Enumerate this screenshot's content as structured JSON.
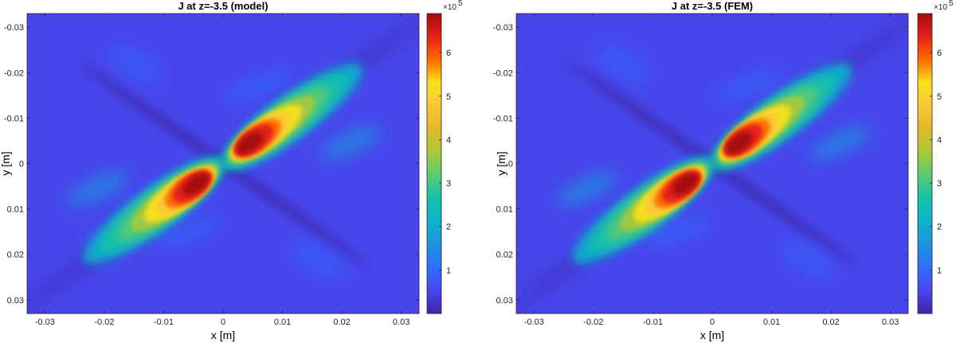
{
  "colors": {
    "colormap": [
      "#3e26a8",
      "#4746eb",
      "#2f6ffe",
      "#1e93e0",
      "#0fb1cc",
      "#14c2a6",
      "#5cca74",
      "#a8c93a",
      "#e2b82c",
      "#fdc738",
      "#f8e21c",
      "#ff6a00",
      "#e4201a",
      "#a70b0b"
    ],
    "background": "#ffffff"
  },
  "chart_data": [
    {
      "type": "heatmap",
      "title": "J at z=-3.5 (model)",
      "xlabel": "x [m]",
      "ylabel": "y [m]",
      "xlim": [
        -0.033,
        0.033
      ],
      "ylim": [
        -0.033,
        0.033
      ],
      "y_direction": "reverse",
      "xticks": [
        "-0.03",
        "-0.02",
        "-0.01",
        "0",
        "0.01",
        "0.02",
        "0.03"
      ],
      "yticks": [
        "-0.03",
        "-0.02",
        "-0.01",
        "0",
        "0.01",
        "0.02",
        "0.03"
      ],
      "colorbar": {
        "range": [
          0,
          690000
        ],
        "ticks": [
          "1",
          "2",
          "3",
          "4",
          "5",
          "6"
        ],
        "multiplier_base": "×10",
        "multiplier_exp": "5"
      },
      "peaks": [
        {
          "x": 0.0045,
          "y": -0.0045,
          "value": 690000
        },
        {
          "x": -0.0045,
          "y": 0.0045,
          "value": 690000
        }
      ]
    },
    {
      "type": "heatmap",
      "title": "J at z=-3.5 (FEM)",
      "xlabel": "x [m]",
      "ylabel": "y [m]",
      "xlim": [
        -0.033,
        0.033
      ],
      "ylim": [
        -0.033,
        0.033
      ],
      "y_direction": "reverse",
      "xticks": [
        "-0.03",
        "-0.02",
        "-0.01",
        "0",
        "0.01",
        "0.02",
        "0.03"
      ],
      "yticks": [
        "-0.03",
        "-0.02",
        "-0.01",
        "0",
        "0.01",
        "0.02",
        "0.03"
      ],
      "colorbar": {
        "range": [
          0,
          690000
        ],
        "ticks": [
          "1",
          "2",
          "3",
          "4",
          "5",
          "6"
        ],
        "multiplier_base": "×10",
        "multiplier_exp": "5"
      },
      "peaks": [
        {
          "x": 0.0045,
          "y": -0.0045,
          "value": 690000
        },
        {
          "x": -0.0045,
          "y": 0.0045,
          "value": 690000
        }
      ]
    }
  ]
}
